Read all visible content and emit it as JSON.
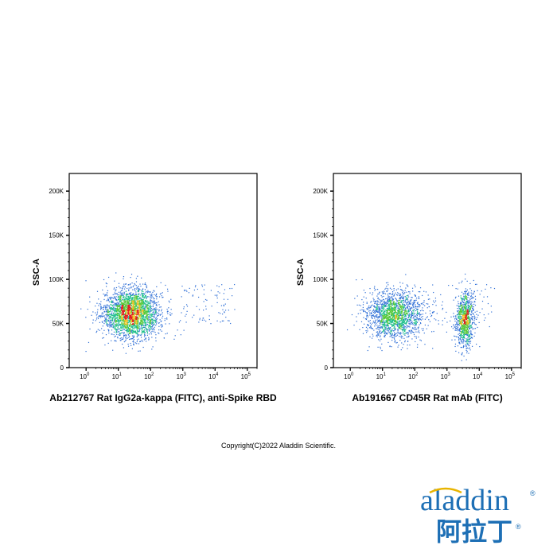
{
  "chart_data": [
    {
      "type": "scatter",
      "xlabel": "Ab212767 Rat IgG2a-kappa (FITC), anti-Spike RBD",
      "ylabel": "SSC-A",
      "xscale": "log",
      "xlim": [
        0.3,
        200000
      ],
      "ylim": [
        0,
        220000
      ],
      "x_ticks": [
        "10^0",
        "10^1",
        "10^2",
        "10^3",
        "10^4",
        "10^5"
      ],
      "y_ticks": [
        "0",
        "50K",
        "100K",
        "150K",
        "200K"
      ],
      "colormap": "density (blue-green-yellow-red)",
      "populations": [
        {
          "x_center_log10": 1.4,
          "x_spread_log10": 0.45,
          "y_center": 62000,
          "y_spread": 14000,
          "weight": 1.0
        }
      ],
      "sparse_events": {
        "x_range": [
          800,
          40000
        ],
        "y_range": [
          50000,
          95000
        ]
      }
    },
    {
      "type": "scatter",
      "xlabel": "Ab191667 CD45R Rat mAb (FITC)",
      "ylabel": "SSC-A",
      "xscale": "log",
      "xlim": [
        0.3,
        200000
      ],
      "ylim": [
        0,
        220000
      ],
      "x_ticks": [
        "10^0",
        "10^1",
        "10^2",
        "10^3",
        "10^4",
        "10^5"
      ],
      "y_ticks": [
        "0",
        "50K",
        "100K",
        "150K",
        "200K"
      ],
      "colormap": "density (blue-green-yellow-red)",
      "populations": [
        {
          "x_center_log10": 1.35,
          "x_spread_log10": 0.45,
          "y_center": 60000,
          "y_spread": 14000,
          "weight": 0.65
        },
        {
          "x_center_log10": 3.55,
          "x_spread_log10": 0.14,
          "y_center": 55000,
          "y_spread": 16000,
          "weight": 0.35
        }
      ],
      "sparse_events": {
        "x_range": [
          80,
          30000
        ],
        "y_range": [
          45000,
          95000
        ]
      }
    }
  ],
  "copyright": "Copyright(C)2022 Aladdin Scientific.",
  "logo": {
    "text": "aladdin",
    "chinese": "阿拉丁",
    "registered": "®",
    "color": "#1d6fb5"
  }
}
